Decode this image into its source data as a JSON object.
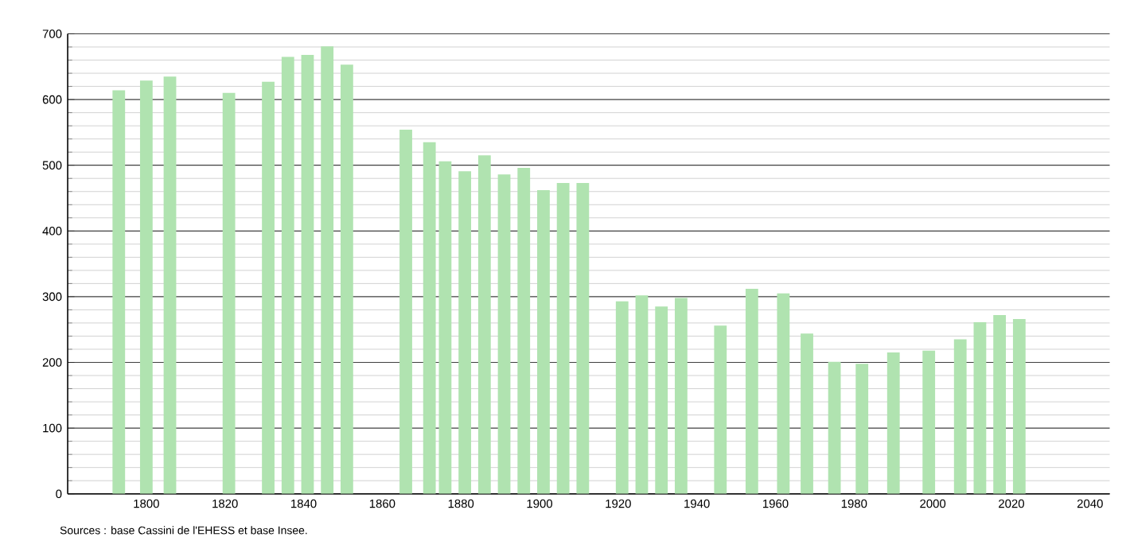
{
  "chart_data": {
    "type": "bar",
    "color": "#b0e3b0",
    "x": [
      1793,
      1800,
      1806,
      1821,
      1831,
      1836,
      1841,
      1846,
      1851,
      1866,
      1872,
      1876,
      1881,
      1886,
      1891,
      1896,
      1901,
      1906,
      1911,
      1921,
      1926,
      1931,
      1936,
      1946,
      1954,
      1962,
      1968,
      1975,
      1982,
      1990,
      1999,
      2007,
      2012,
      2017,
      2022
    ],
    "values": [
      614,
      629,
      635,
      610,
      627,
      665,
      668,
      681,
      653,
      554,
      535,
      506,
      491,
      515,
      486,
      496,
      462,
      473,
      473,
      293,
      302,
      285,
      298,
      256,
      312,
      305,
      244,
      201,
      198,
      215,
      218,
      235,
      261,
      272,
      266
    ],
    "xlim": [
      1780,
      2045
    ],
    "xticks": [
      1800,
      1820,
      1840,
      1860,
      1880,
      1900,
      1920,
      1940,
      1960,
      1980,
      2000,
      2020,
      2040
    ],
    "ylim": [
      0,
      700
    ],
    "yticks": [
      0,
      100,
      200,
      300,
      400,
      500,
      600,
      700
    ],
    "grid": "y",
    "annotations": [
      "Sources : base Cassini de l'EHESS et base Insee."
    ]
  }
}
